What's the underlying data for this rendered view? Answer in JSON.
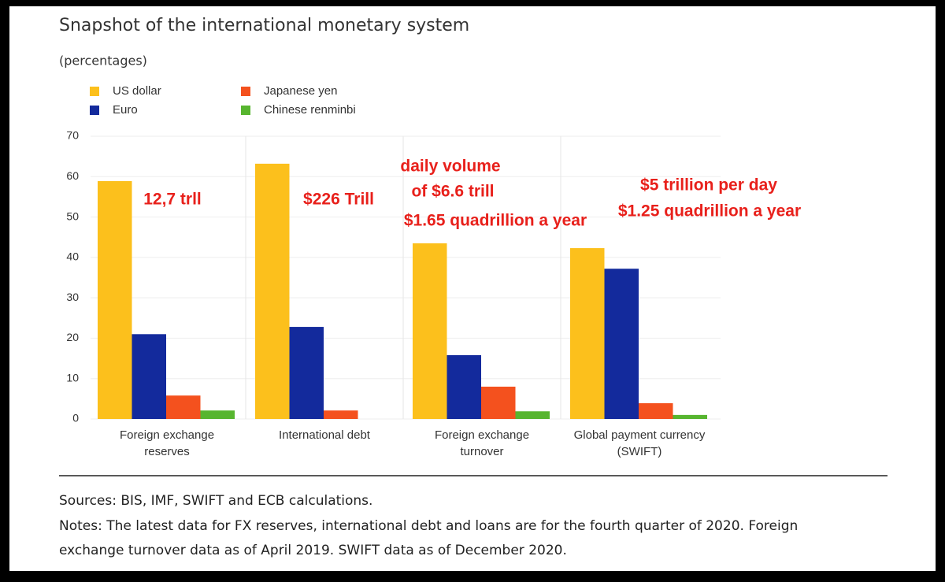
{
  "chart_data": {
    "type": "bar",
    "title": "Snapshot of the international monetary system",
    "subtitle": "(percentages)",
    "categories": [
      [
        "Foreign exchange",
        "reserves"
      ],
      [
        "International debt"
      ],
      [
        "Foreign exchange",
        "turnover"
      ],
      [
        "Global payment currency",
        "(SWIFT)"
      ]
    ],
    "series": [
      {
        "name": "US dollar",
        "color": "#fcc01c",
        "values": [
          58.9,
          63.2,
          43.5,
          42.3
        ]
      },
      {
        "name": "Euro",
        "color": "#132a9c",
        "values": [
          21,
          22.8,
          15.8,
          37.2
        ]
      },
      {
        "name": "Japanese yen",
        "color": "#f4511e",
        "values": [
          5.8,
          2.1,
          8,
          3.9
        ]
      },
      {
        "name": "Chinese renminbi",
        "color": "#57b52f",
        "values": [
          2.1,
          null,
          1.9,
          1
        ]
      }
    ],
    "ylim": [
      0,
      70
    ],
    "yticks": [
      0,
      10,
      20,
      30,
      40,
      50,
      60,
      70
    ],
    "grid": true,
    "annotations": [
      [
        "12,7 trll"
      ],
      [
        "$226 Trill"
      ],
      [
        "daily volume",
        "of $6.6 trill",
        "$1.65 quadrillion a year"
      ],
      [
        "$5 trillion per day",
        "$1.25 quadrillion a year"
      ]
    ],
    "sources": "Sources: BIS, IMF, SWIFT and ECB calculations.",
    "notes": [
      "Notes: The latest data for FX reserves, international debt and loans are for the fourth quarter of 2020. Foreign",
      "exchange turnover data as of April 2019. SWIFT data as of December 2020."
    ]
  }
}
